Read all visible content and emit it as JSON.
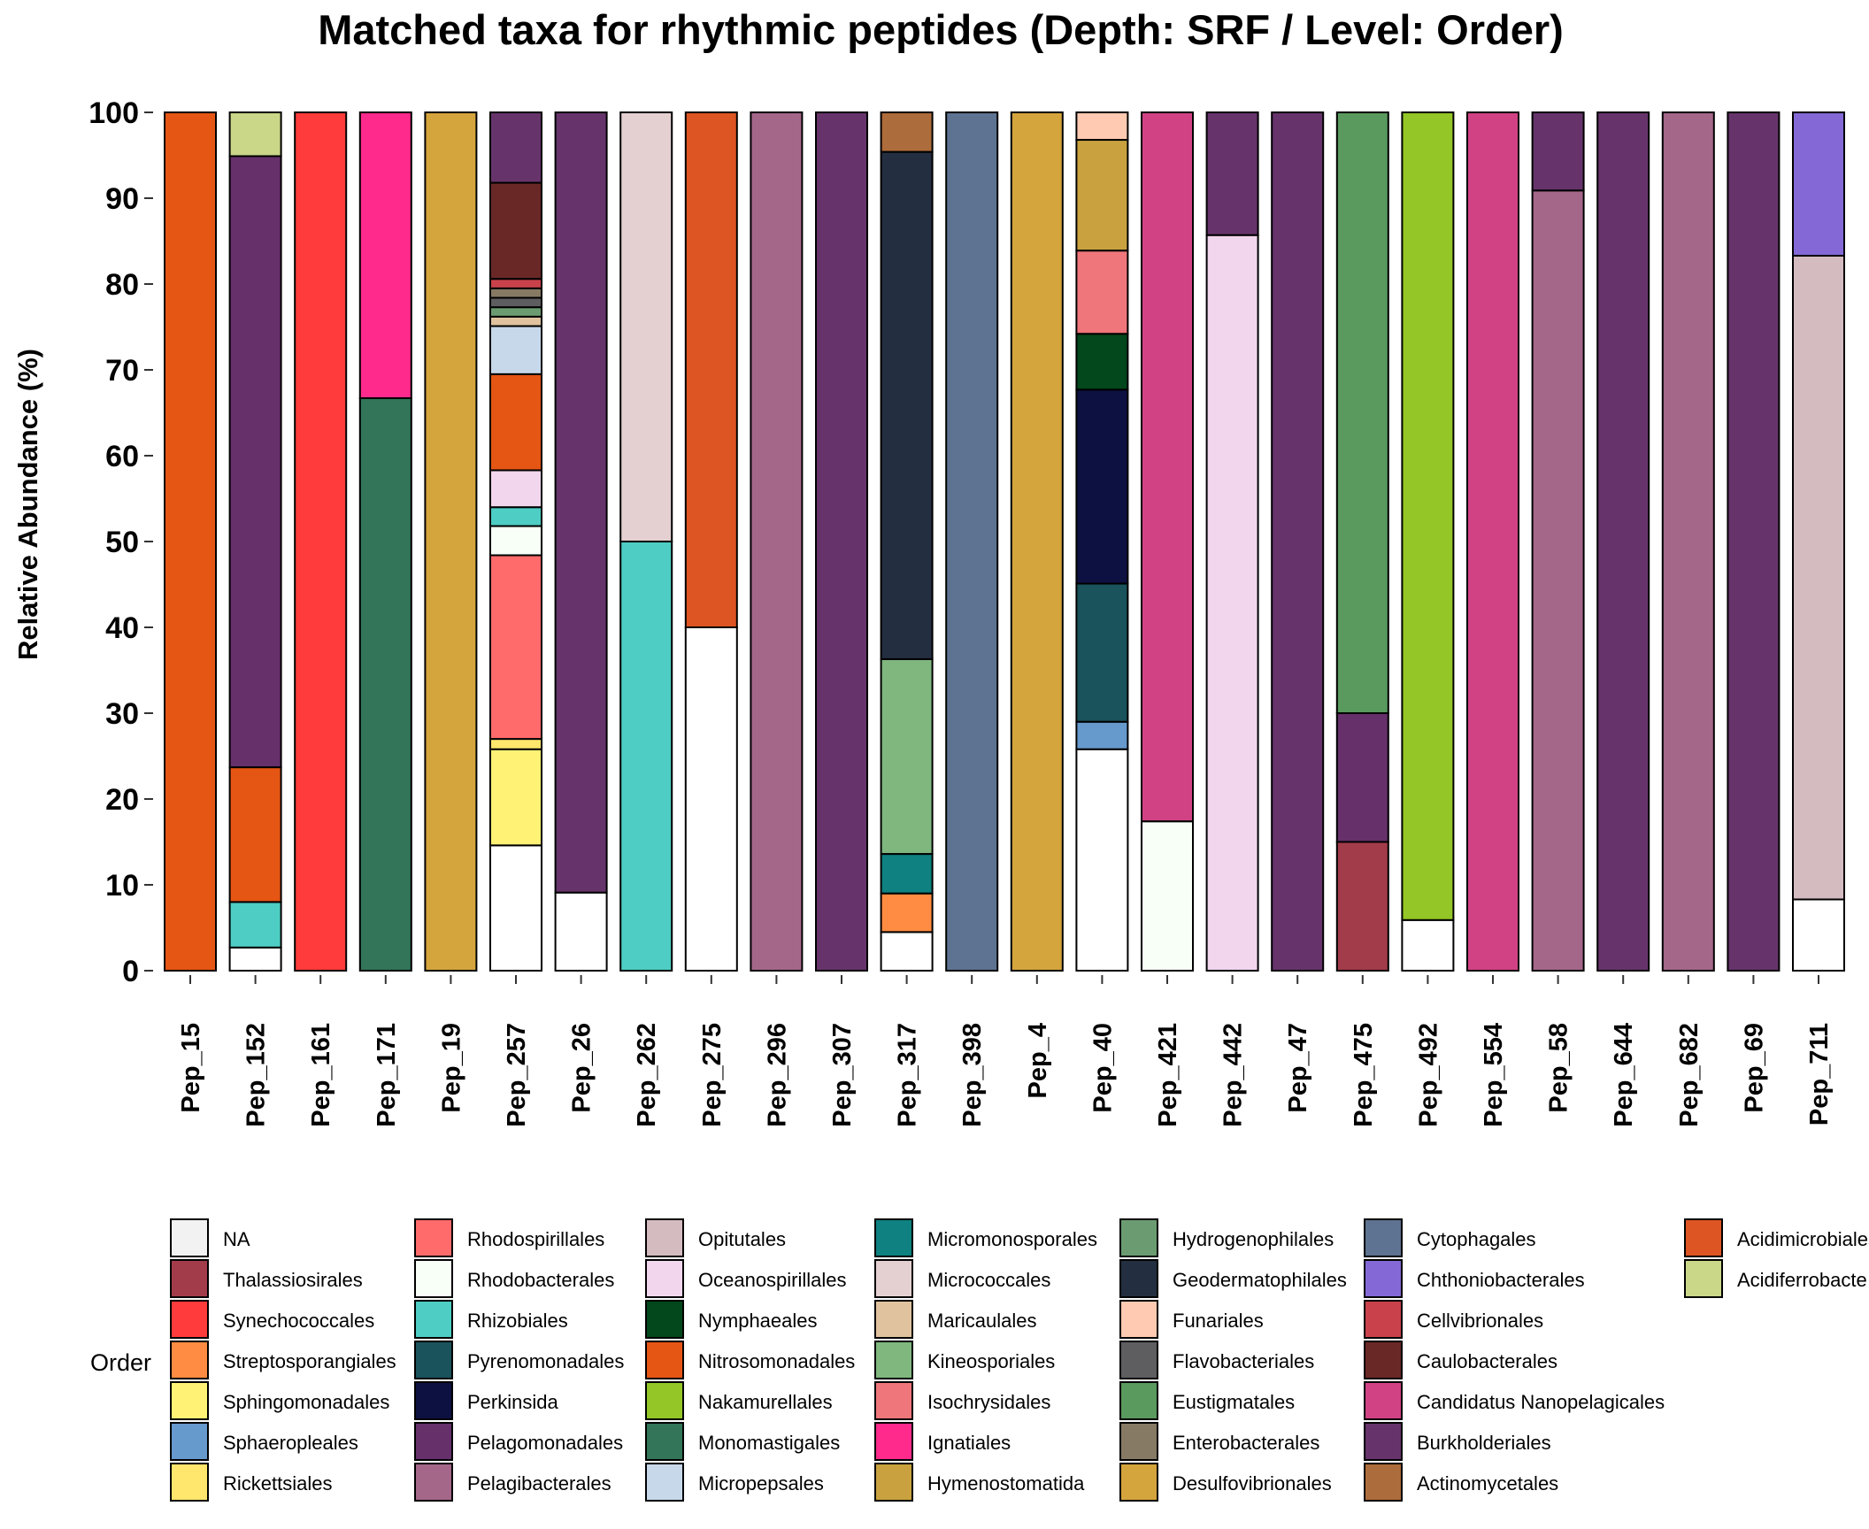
{
  "chart_data": {
    "type": "bar",
    "stacked": true,
    "title": "Matched taxa for rhythmic peptides (Depth: SRF / Level: Order)",
    "xlabel": "",
    "ylabel": "Relative Abundance (%)",
    "ylim": [
      0,
      100
    ],
    "yticks": [
      "0",
      "10",
      "20",
      "30",
      "40",
      "50",
      "60",
      "70",
      "80",
      "90",
      "100"
    ],
    "grid": false,
    "legend_title": "Order",
    "legend_position": "bottom",
    "legend": [
      {
        "name": "NA",
        "color": "#F2F2F2"
      },
      {
        "name": "Thalassiosirales",
        "color": "#A23C4B"
      },
      {
        "name": "Synechococcales",
        "color": "#FF3B3B"
      },
      {
        "name": "Streptosporangiales",
        "color": "#FF8C42"
      },
      {
        "name": "Sphingomonadales",
        "color": "#FFF275"
      },
      {
        "name": "Sphaeropleales",
        "color": "#6699CC"
      },
      {
        "name": "Rickettsiales",
        "color": "#FFE66D"
      },
      {
        "name": "Rhodospirillales",
        "color": "#FF6B6B"
      },
      {
        "name": "Rhodobacterales",
        "color": "#F7FFF7"
      },
      {
        "name": "Rhizobiales",
        "color": "#4ECDC4"
      },
      {
        "name": "Pyrenomonadales",
        "color": "#1A535C"
      },
      {
        "name": "Perkinsida",
        "color": "#0D1141"
      },
      {
        "name": "Pelagomonadales",
        "color": "#66306B"
      },
      {
        "name": "Pelagibacterales",
        "color": "#A4678A"
      },
      {
        "name": "Opitutales",
        "color": "#D4BBC0"
      },
      {
        "name": "Oceanospirillales",
        "color": "#F1D6EE"
      },
      {
        "name": "Nymphaeales",
        "color": "#03471C"
      },
      {
        "name": "Nitrosomonadales",
        "color": "#E55514"
      },
      {
        "name": "Nakamurellales",
        "color": "#93C626"
      },
      {
        "name": "Monomastigales",
        "color": "#327559"
      },
      {
        "name": "Micropepsales",
        "color": "#C7D8EB"
      },
      {
        "name": "Micromonosporales",
        "color": "#0E8180"
      },
      {
        "name": "Micrococcales",
        "color": "#E5D0D1"
      },
      {
        "name": "Maricaulales",
        "color": "#E0C39E"
      },
      {
        "name": "Kineosporiales",
        "color": "#7FB77E"
      },
      {
        "name": "Isochrysidales",
        "color": "#EF767A"
      },
      {
        "name": "Ignatiales",
        "color": "#FF2A8C"
      },
      {
        "name": "Hymenostomatida",
        "color": "#C9A23F"
      },
      {
        "name": "Hydrogenophilales",
        "color": "#6B9C71"
      },
      {
        "name": "Geodermatophilales",
        "color": "#232F40"
      },
      {
        "name": "Funariales",
        "color": "#FFCAB1"
      },
      {
        "name": "Flavobacteriales",
        "color": "#5E5E61"
      },
      {
        "name": "Eustigmatales",
        "color": "#5A9A5E"
      },
      {
        "name": "Enterobacterales",
        "color": "#877A64"
      },
      {
        "name": "Desulfovibrionales",
        "color": "#D4A43D"
      },
      {
        "name": "Cytophagales",
        "color": "#5E7391"
      },
      {
        "name": "Chthoniobacterales",
        "color": "#8469D6"
      },
      {
        "name": "Cellvibrionales",
        "color": "#C9424B"
      },
      {
        "name": "Caulobacterales",
        "color": "#692826"
      },
      {
        "name": "Candidatus Nanopelagicales",
        "color": "#D14285"
      },
      {
        "name": "Burkholderiales",
        "color": "#66346B"
      },
      {
        "name": "Actinomycetales",
        "color": "#AD6C3B"
      },
      {
        "name": "Acidimicrobiales",
        "color": "#DD5522"
      },
      {
        "name": "Acidiferrobacte",
        "color": "#CAD688"
      }
    ],
    "categories": [
      "Pep_15",
      "Pep_152",
      "Pep_161",
      "Pep_171",
      "Pep_19",
      "Pep_257",
      "Pep_26",
      "Pep_262",
      "Pep_275",
      "Pep_296",
      "Pep_307",
      "Pep_317",
      "Pep_398",
      "Pep_4",
      "Pep_40",
      "Pep_421",
      "Pep_442",
      "Pep_47",
      "Pep_475",
      "Pep_492",
      "Pep_554",
      "Pep_58",
      "Pep_644",
      "Pep_682",
      "Pep_69",
      "Pep_711"
    ],
    "stacks": [
      [
        [
          "Nitrosomonadales",
          100
        ]
      ],
      [
        [
          "NA",
          2.7
        ],
        [
          "Rhizobiales",
          5.3
        ],
        [
          "Nitrosomonadales",
          15.7
        ],
        [
          "Pelagomonadales",
          71.2
        ],
        [
          "Acidiferrobacte",
          5.1
        ]
      ],
      [
        [
          "Synechococcales",
          100
        ]
      ],
      [
        [
          "Monomastigales",
          66.7
        ],
        [
          "Ignatiales",
          33.3
        ]
      ],
      [
        [
          "Desulfovibrionales",
          100
        ]
      ],
      [
        [
          "NA",
          14.6
        ],
        [
          "Sphingomonadales",
          11.2
        ],
        [
          "Rickettsiales",
          1.2
        ],
        [
          "Rhodospirillales",
          21.4
        ],
        [
          "Rhodobacterales",
          3.4
        ],
        [
          "Rhizobiales",
          2.2
        ],
        [
          "Oceanospirillales",
          4.3
        ],
        [
          "Nitrosomonadales",
          11.2
        ],
        [
          "Micropepsales",
          5.6
        ],
        [
          "Maricaulales",
          1.1
        ],
        [
          "Hydrogenophilales",
          1.1
        ],
        [
          "Flavobacteriales",
          1.1
        ],
        [
          "Enterobacterales",
          1.1
        ],
        [
          "Cellvibrionales",
          1.1
        ],
        [
          "Caulobacterales",
          11.2
        ],
        [
          "Burkholderiales",
          8.2
        ]
      ],
      [
        [
          "NA",
          9.1
        ],
        [
          "Burkholderiales",
          90.9
        ]
      ],
      [
        [
          "Rhizobiales",
          50
        ],
        [
          "Micrococcales",
          50
        ]
      ],
      [
        [
          "NA",
          40
        ],
        [
          "Acidimicrobiales",
          60
        ]
      ],
      [
        [
          "Pelagibacterales",
          100
        ]
      ],
      [
        [
          "Burkholderiales",
          100
        ]
      ],
      [
        [
          "NA",
          4.5
        ],
        [
          "Streptosporangiales",
          4.5
        ],
        [
          "Micromonosporales",
          4.6
        ],
        [
          "Kineosporiales",
          22.7
        ],
        [
          "Geodermatophilales",
          59.1
        ],
        [
          "Actinomycetales",
          4.6
        ]
      ],
      [
        [
          "Cytophagales",
          100
        ]
      ],
      [
        [
          "Desulfovibrionales",
          100
        ]
      ],
      [
        [
          "NA",
          25.8
        ],
        [
          "Sphaeropleales",
          3.2
        ],
        [
          "Pyrenomonadales",
          16.1
        ],
        [
          "Perkinsida",
          22.6
        ],
        [
          "Nymphaeales",
          6.5
        ],
        [
          "Isochrysidales",
          9.7
        ],
        [
          "Hymenostomatida",
          12.9
        ],
        [
          "Funariales",
          3.2
        ]
      ],
      [
        [
          "Rhodobacterales",
          17.4
        ],
        [
          "Candidatus Nanopelagicales",
          82.6
        ]
      ],
      [
        [
          "Oceanospirillales",
          85.7
        ],
        [
          "Burkholderiales",
          14.3
        ]
      ],
      [
        [
          "Burkholderiales",
          100
        ]
      ],
      [
        [
          "Thalassiosirales",
          15
        ],
        [
          "Pelagomonadales",
          15
        ],
        [
          "Eustigmatales",
          70
        ]
      ],
      [
        [
          "NA",
          5.9
        ],
        [
          "Nakamurellales",
          94.1
        ]
      ],
      [
        [
          "Candidatus Nanopelagicales",
          100
        ]
      ],
      [
        [
          "Pelagibacterales",
          90.9
        ],
        [
          "Burkholderiales",
          9.1
        ]
      ],
      [
        [
          "Burkholderiales",
          100
        ]
      ],
      [
        [
          "Pelagibacterales",
          100
        ]
      ],
      [
        [
          "Burkholderiales",
          100
        ]
      ],
      [
        [
          "NA",
          8.3
        ],
        [
          "Opitutales",
          75
        ],
        [
          "Chthoniobacterales",
          16.7
        ]
      ]
    ]
  }
}
